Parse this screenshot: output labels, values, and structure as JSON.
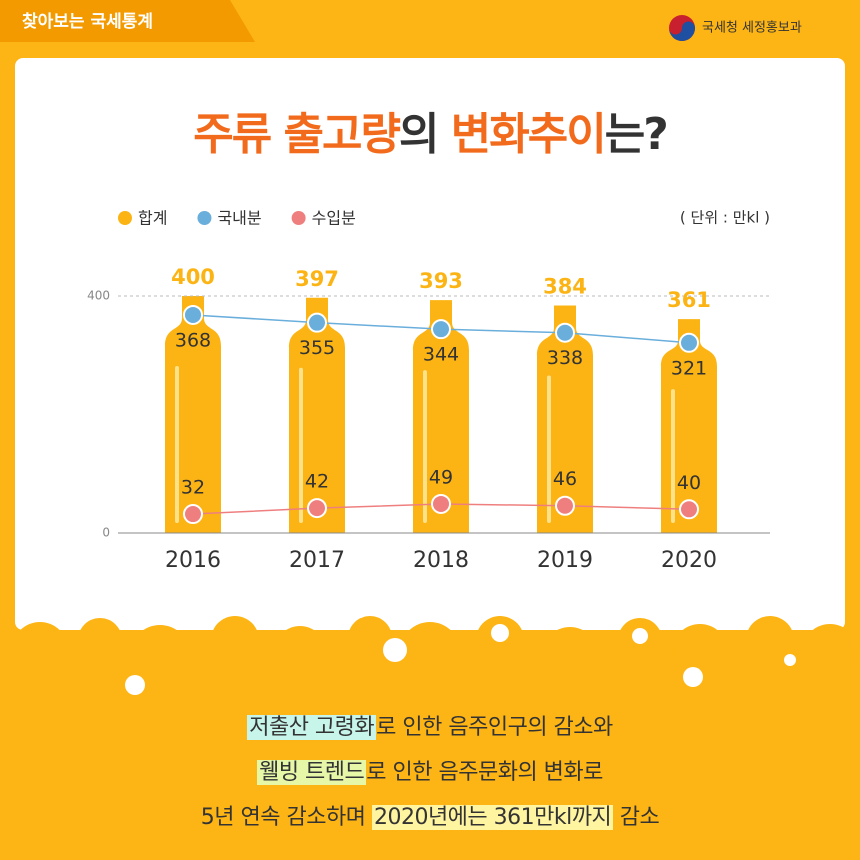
{
  "header": {
    "tag": "찾아보는 국세통계",
    "logo": "국세청 세정홍보과"
  },
  "title_parts": [
    {
      "text": "주류 출고량",
      "color": "#f26b1d"
    },
    {
      "text": "의 ",
      "color": "#333333"
    },
    {
      "text": "변화추이",
      "color": "#f26b1d"
    },
    {
      "text": "는?",
      "color": "#333333"
    }
  ],
  "chart_data": {
    "type": "bar",
    "unit": "( 단위 : 만kl )",
    "categories": [
      "2016",
      "2017",
      "2018",
      "2019",
      "2020"
    ],
    "series": [
      {
        "name": "합계",
        "type": "bar",
        "color": "#fbb414",
        "values": [
          400,
          397,
          393,
          384,
          361
        ]
      },
      {
        "name": "국내분",
        "type": "line",
        "color": "#6aaedc",
        "values": [
          368,
          355,
          344,
          338,
          321
        ]
      },
      {
        "name": "수입분",
        "type": "line",
        "color": "#ef7f7f",
        "values": [
          32,
          42,
          49,
          46,
          40
        ]
      }
    ],
    "ylim": [
      0,
      400
    ],
    "yticks": [
      0,
      400
    ],
    "grid": true
  },
  "footer": {
    "lines": [
      [
        {
          "text": "저출산 고령화",
          "highlight": "#c8f5ea"
        },
        {
          "text": "로 인한 음주인구의 감소와"
        }
      ],
      [
        {
          "text": "웰빙 트렌드",
          "highlight": "#e6f7a8"
        },
        {
          "text": "로 인한 음주문화의 변화로"
        }
      ],
      [
        {
          "text": "5년 연속 감소하며 "
        },
        {
          "text": "2020년에는 361만kl까지",
          "highlight": "#fff4a0"
        },
        {
          "text": " 감소"
        }
      ]
    ]
  }
}
